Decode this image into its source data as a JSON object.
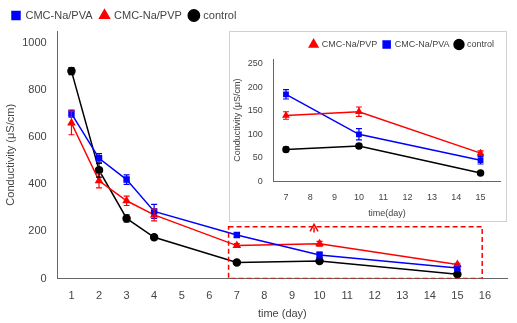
{
  "chart_data": [
    {
      "type": "line",
      "xlabel": "time (day)",
      "ylabel": "Conductivity (μS/cm)",
      "x": [
        1,
        2,
        3,
        4,
        7,
        10,
        15
      ],
      "series": [
        {
          "name": "CMC-Na/PVA",
          "color": "#0000ff",
          "marker": "square",
          "values": [
            700,
            510,
            420,
            285,
            185,
            100,
            45
          ],
          "errors": [
            15,
            20,
            20,
            30,
            10,
            12,
            8
          ]
        },
        {
          "name": "CMC-Na/PVP",
          "color": "#ff0000",
          "marker": "triangle",
          "values": [
            660,
            415,
            330,
            270,
            140,
            148,
            60
          ],
          "errors": [
            50,
            30,
            20,
            25,
            8,
            10,
            5
          ]
        },
        {
          "name": "control",
          "color": "#000000",
          "marker": "circle",
          "values": [
            880,
            460,
            255,
            175,
            68,
            75,
            18
          ],
          "errors": [
            15,
            30,
            15,
            10,
            5,
            5,
            3
          ]
        }
      ],
      "xlim": [
        0.5,
        16.8
      ],
      "xticks": [
        1,
        2,
        3,
        4,
        5,
        6,
        7,
        8,
        9,
        10,
        11,
        12,
        13,
        14,
        15,
        16
      ],
      "ylim": [
        0,
        1050
      ],
      "yticks": [
        0,
        200,
        400,
        600,
        800,
        1000
      ],
      "grid": false,
      "legend": "upper left",
      "annotations": [
        {
          "shape": "rectangle",
          "x0": 6.7,
          "y0": 0,
          "width": 9.2,
          "height": 220,
          "color": "#ff0000",
          "line_style": "dashed"
        },
        {
          "shape": "arrow",
          "x": 9.8,
          "y_from": 195,
          "y_to": 230,
          "color": "#ff0000",
          "line_style": "dashed"
        }
      ]
    },
    {
      "type": "line",
      "xlabel": "time(day)",
      "ylabel": "Conductivity (μS/cm)",
      "x": [
        7,
        10,
        15
      ],
      "series": [
        {
          "name": "CMC-Na/PVP",
          "color": "#ff0000",
          "marker": "triangle",
          "values": [
            140,
            148,
            60
          ],
          "errors": [
            8,
            10,
            5
          ]
        },
        {
          "name": "CMC-Na/PVA",
          "color": "#0000ff",
          "marker": "square",
          "values": [
            185,
            100,
            45
          ],
          "errors": [
            10,
            12,
            8
          ]
        },
        {
          "name": "control",
          "color": "#000000",
          "marker": "circle",
          "values": [
            68,
            75,
            18
          ],
          "errors": [
            5,
            5,
            3
          ]
        }
      ],
      "xlim": [
        6.5,
        15.8
      ],
      "xticks": [
        7,
        8,
        9,
        10,
        11,
        12,
        13,
        14,
        15
      ],
      "ylim": [
        0,
        260
      ],
      "yticks": [
        0,
        50,
        100,
        150,
        200,
        250
      ],
      "grid": false,
      "legend": "upper right"
    }
  ]
}
